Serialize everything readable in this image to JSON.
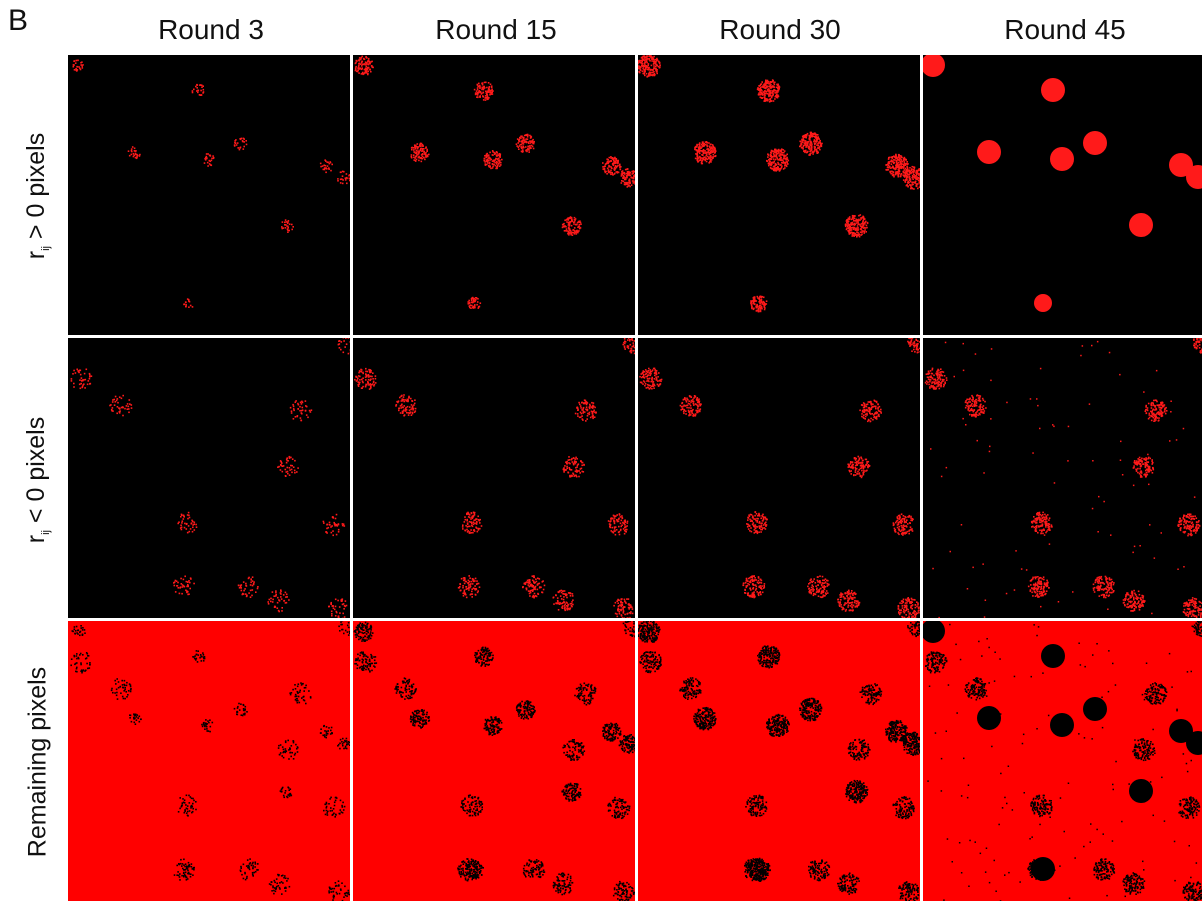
{
  "panel_label": "B",
  "columns": [
    "Round 3",
    "Round 15",
    "Round 30",
    "Round 45"
  ],
  "rows": [
    {
      "label_main": "r",
      "label_sub": "ij",
      "label_rest": " > 0  pixels",
      "background": "#000000",
      "spot_color": "#ff1a1a"
    },
    {
      "label_main": "r",
      "label_sub": "ij",
      "label_rest": " < 0  pixels",
      "background": "#000000",
      "spot_color": "#ff1a1a"
    },
    {
      "label_main": "Remaining  pixels",
      "label_sub": "",
      "label_rest": "",
      "background": "#ff0000",
      "spot_color": "#000000"
    }
  ]
}
